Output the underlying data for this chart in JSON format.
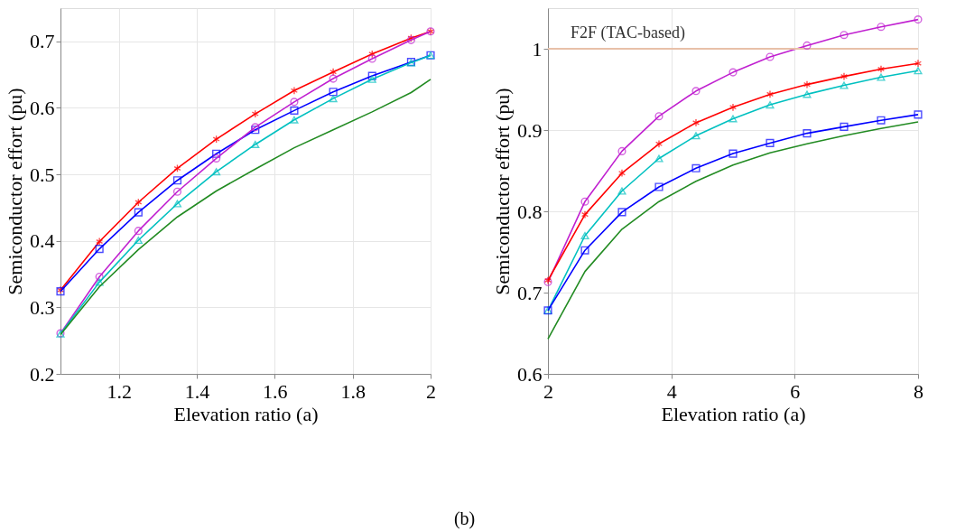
{
  "chart_data": [
    {
      "type": "line",
      "xlabel": "Elevation ratio (a)",
      "ylabel": "Semiconductor effort (pu)",
      "xlim": [
        1.05,
        2
      ],
      "ylim": [
        0.2,
        0.75
      ],
      "xticks": [
        1.2,
        1.4,
        1.6,
        1.8,
        2
      ],
      "yticks": [
        0.2,
        0.3,
        0.4,
        0.5,
        0.6,
        0.7
      ],
      "grid": true,
      "line_style": "solid",
      "annotations": [
        "(b)"
      ],
      "x": [
        1.05,
        1.15,
        1.25,
        1.35,
        1.45,
        1.55,
        1.65,
        1.75,
        1.85,
        1.95,
        2
      ],
      "series": [
        {
          "color": "#ff0000",
          "marker": "cross",
          "values": [
            0.326,
            0.399,
            0.458,
            0.509,
            0.553,
            0.591,
            0.626,
            0.654,
            0.681,
            0.705,
            0.715
          ]
        },
        {
          "color": "#0000ff",
          "marker": "square",
          "values": [
            0.324,
            0.388,
            0.443,
            0.491,
            0.531,
            0.567,
            0.596,
            0.624,
            0.648,
            0.669,
            0.679
          ]
        },
        {
          "color": "#c020d0",
          "marker": "circle",
          "values": [
            0.261,
            0.346,
            0.415,
            0.474,
            0.524,
            0.571,
            0.609,
            0.644,
            0.674,
            0.702,
            0.715
          ]
        },
        {
          "color": "#00c0c0",
          "marker": "triangle",
          "values": [
            0.26,
            0.338,
            0.401,
            0.456,
            0.504,
            0.545,
            0.582,
            0.614,
            0.643,
            0.668,
            0.679
          ]
        },
        {
          "color": "#228b22",
          "marker": "none",
          "values": [
            0.259,
            0.331,
            0.387,
            0.436,
            0.475,
            0.508,
            0.54,
            0.567,
            0.594,
            0.623,
            0.643
          ]
        }
      ]
    },
    {
      "type": "line",
      "xlabel": "Elevation ratio (a)",
      "ylabel": "Semiconductor effort (pu)",
      "xlim": [
        2,
        8
      ],
      "ylim": [
        0.6,
        1.05
      ],
      "xticks": [
        2,
        4,
        6,
        8
      ],
      "yticks": [
        0.6,
        0.7,
        0.8,
        0.9,
        1
      ],
      "grid": true,
      "line_style": "solid",
      "ref_lines": [
        {
          "axis": "y",
          "value": 1,
          "label": "F2F (TAC-based)",
          "color": "#e8c0a8"
        }
      ],
      "x": [
        2,
        2.6,
        3.2,
        3.8,
        4.4,
        5.0,
        5.6,
        6.2,
        6.8,
        7.4,
        8
      ],
      "series": [
        {
          "color": "#c020d0",
          "marker": "circle",
          "values": [
            0.713,
            0.812,
            0.874,
            0.917,
            0.948,
            0.971,
            0.99,
            1.004,
            1.017,
            1.027,
            1.036
          ]
        },
        {
          "color": "#ff0000",
          "marker": "cross",
          "values": [
            0.715,
            0.796,
            0.847,
            0.883,
            0.909,
            0.928,
            0.944,
            0.956,
            0.966,
            0.975,
            0.982
          ]
        },
        {
          "color": "#00c0c0",
          "marker": "triangle",
          "values": [
            0.678,
            0.77,
            0.825,
            0.865,
            0.893,
            0.914,
            0.931,
            0.944,
            0.955,
            0.965,
            0.973
          ]
        },
        {
          "color": "#0000ff",
          "marker": "square",
          "values": [
            0.678,
            0.752,
            0.799,
            0.83,
            0.853,
            0.871,
            0.884,
            0.896,
            0.904,
            0.912,
            0.919
          ]
        },
        {
          "color": "#228b22",
          "marker": "none",
          "values": [
            0.643,
            0.726,
            0.778,
            0.812,
            0.837,
            0.857,
            0.872,
            0.883,
            0.893,
            0.902,
            0.91
          ]
        }
      ]
    }
  ]
}
